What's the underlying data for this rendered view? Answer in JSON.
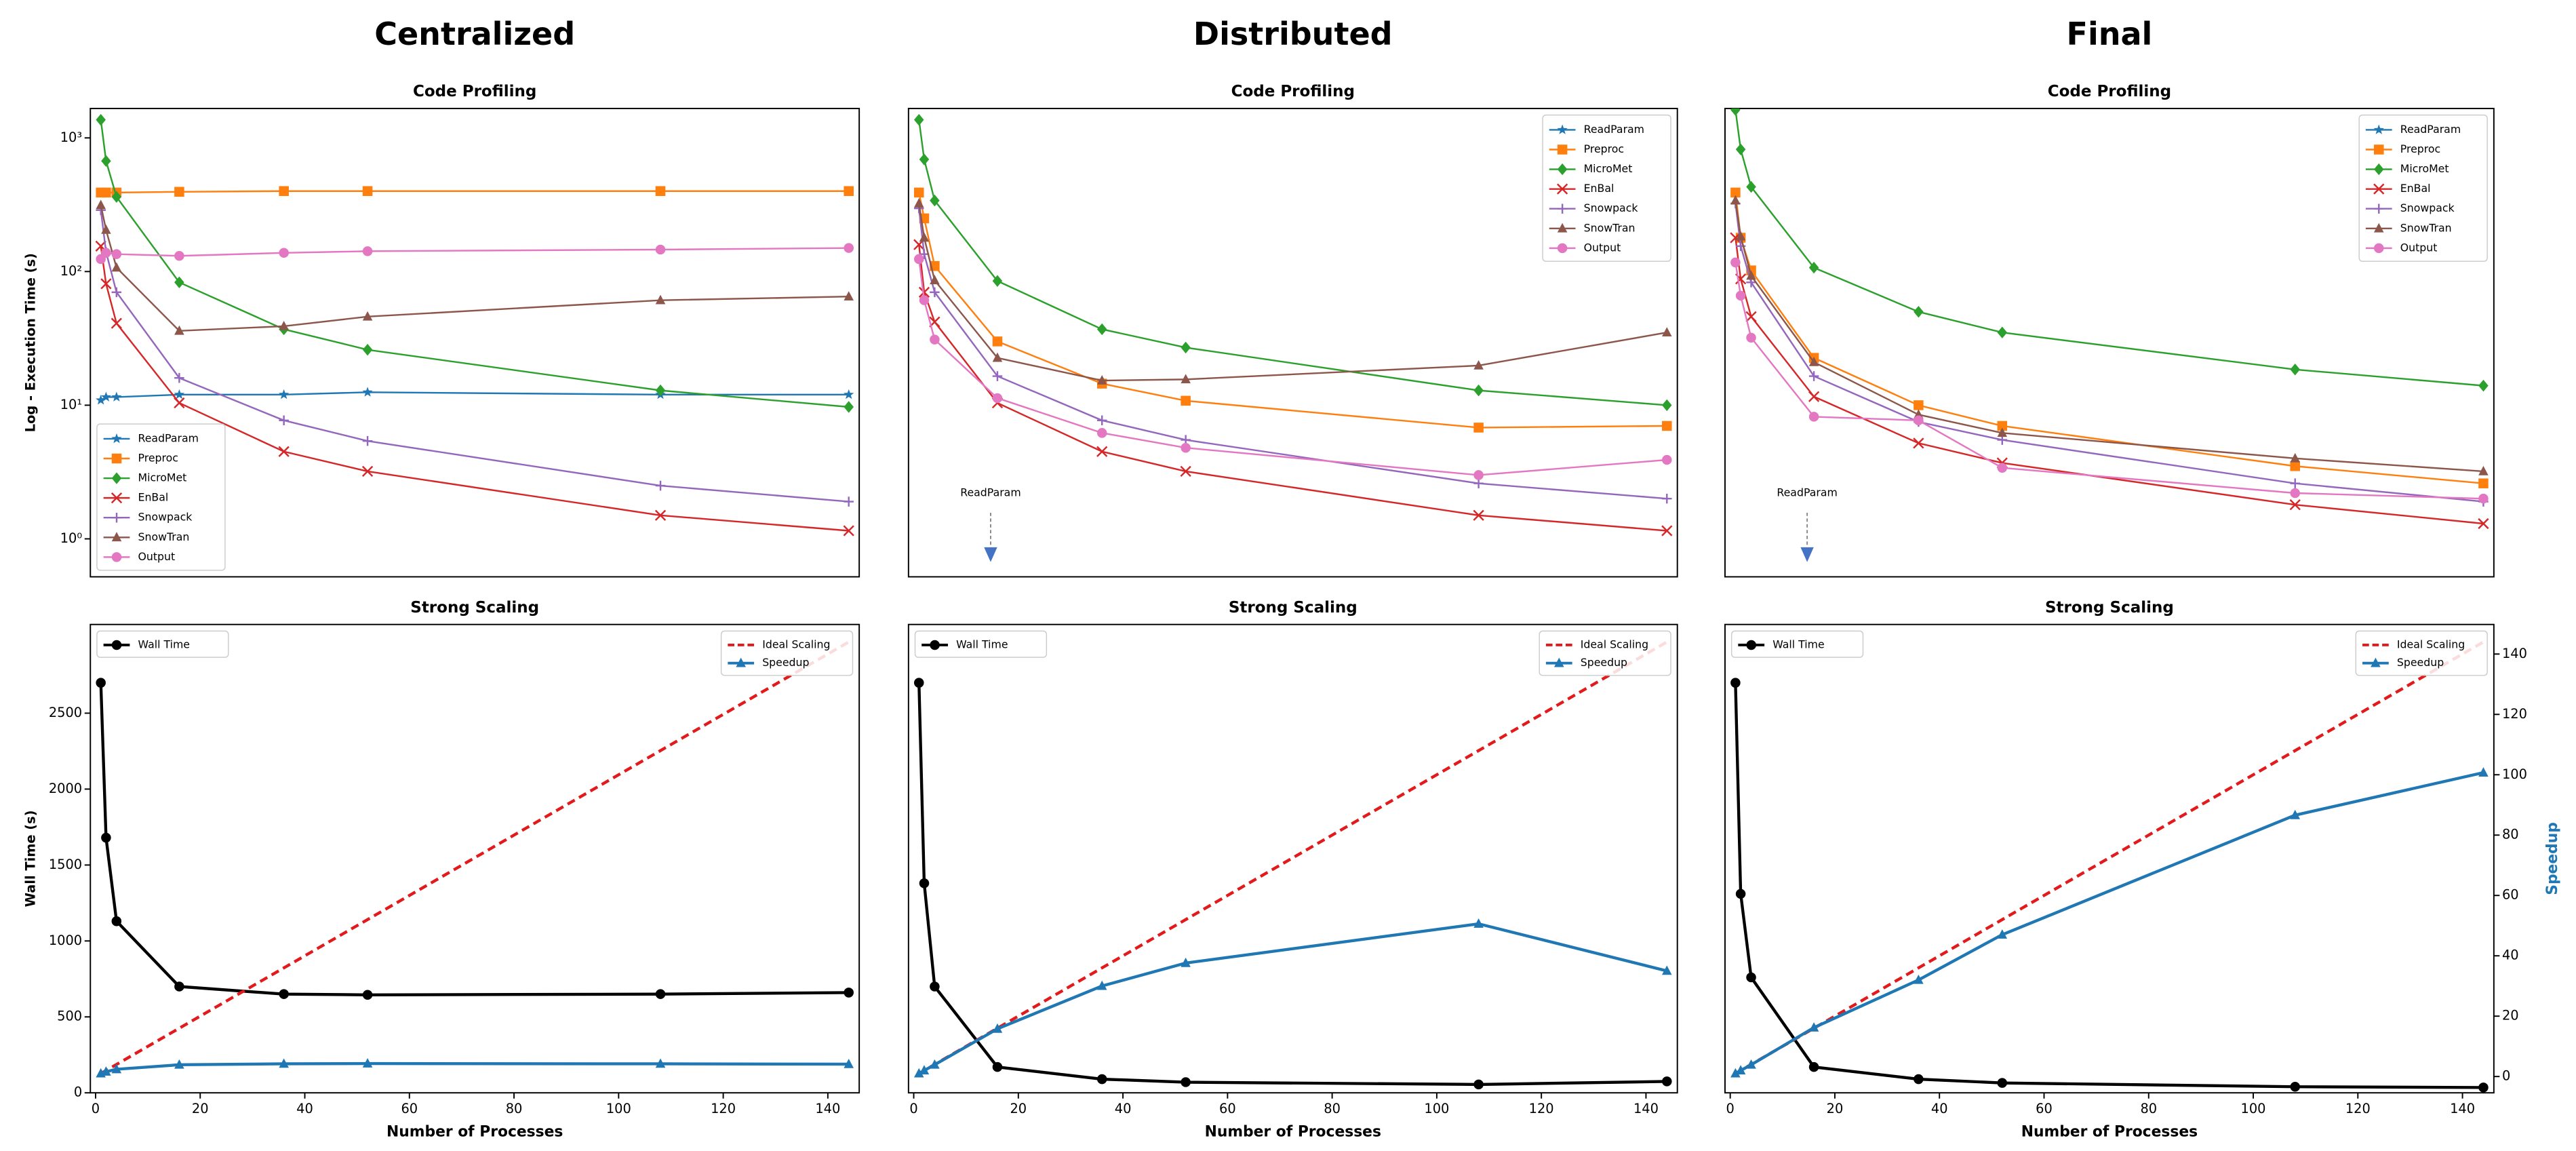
{
  "panel_titles": [
    "Centralized",
    "Distributed",
    "Final"
  ],
  "chart_data": [
    {
      "type": "line",
      "title": "Code Profiling",
      "ylabel": "Log - Execution Time (s)",
      "log_y": true,
      "legend": "lower left",
      "x": [
        1,
        2,
        4,
        16,
        36,
        52,
        108,
        144
      ],
      "xlim": [
        -1,
        146
      ],
      "ylim": [
        0.52,
        1660
      ],
      "yticks": [
        {
          "value": 1,
          "label": "10⁰"
        },
        {
          "value": 10,
          "label": "10¹"
        },
        {
          "value": 100,
          "label": "10²"
        },
        {
          "value": 1000,
          "label": "10³"
        }
      ],
      "series": [
        {
          "name": "ReadParam",
          "color": "#1f77b4",
          "marker": "*",
          "values": [
            10.9,
            11.5,
            11.5,
            12,
            12,
            12.5,
            12,
            12
          ]
        },
        {
          "name": "Preproc",
          "color": "#ff7f0e",
          "marker": "s",
          "values": [
            390,
            390,
            390,
            395,
            400,
            400,
            400,
            400
          ]
        },
        {
          "name": "MicroMet",
          "color": "#2ca02c",
          "marker": "D",
          "values": [
            1365,
            672,
            362,
            83,
            37,
            26,
            12.9,
            9.7
          ]
        },
        {
          "name": "EnBal",
          "color": "#d62728",
          "marker": "x",
          "values": [
            155,
            81,
            41,
            10.4,
            4.5,
            3.2,
            1.5,
            1.15
          ]
        },
        {
          "name": "Snowpack",
          "color": "#9467bd",
          "marker": "+",
          "values": [
            288,
            140,
            70,
            16,
            7.7,
            5.4,
            2.5,
            1.9
          ]
        },
        {
          "name": "SnowTran",
          "color": "#8c564b",
          "marker": "^",
          "values": [
            314,
            205,
            107,
            36,
            39,
            46,
            61,
            65
          ]
        },
        {
          "name": "Output",
          "color": "#e377c2",
          "marker": "o",
          "values": [
            124,
            138,
            135,
            131,
            138,
            142,
            146,
            150
          ]
        }
      ]
    },
    {
      "type": "line",
      "title": "Code Profiling",
      "log_y": true,
      "legend": "upper right",
      "annotation": "ReadParam",
      "x": [
        1,
        2,
        4,
        16,
        36,
        52,
        108,
        144
      ],
      "xlim": [
        -1,
        146
      ],
      "ylim": [
        0.52,
        1660
      ],
      "series": [
        {
          "name": "ReadParam",
          "color": "#1f77b4",
          "marker": "*",
          "values": [
            null,
            null,
            null,
            null,
            null,
            null,
            null,
            null
          ]
        },
        {
          "name": "Preproc",
          "color": "#ff7f0e",
          "marker": "s",
          "values": [
            390,
            250,
            110,
            30,
            14.5,
            10.8,
            6.8,
            7.0
          ]
        },
        {
          "name": "MicroMet",
          "color": "#2ca02c",
          "marker": "D",
          "values": [
            1365,
            690,
            340,
            85,
            37,
            27,
            12.9,
            10
          ]
        },
        {
          "name": "EnBal",
          "color": "#d62728",
          "marker": "x",
          "values": [
            159,
            70,
            42,
            10.4,
            4.5,
            3.2,
            1.5,
            1.15
          ]
        },
        {
          "name": "Snowpack",
          "color": "#9467bd",
          "marker": "+",
          "values": [
            297,
            135,
            70,
            16.5,
            7.7,
            5.5,
            2.6,
            2.0
          ]
        },
        {
          "name": "SnowTran",
          "color": "#8c564b",
          "marker": "^",
          "values": [
            323,
            179,
            86,
            22.6,
            15.3,
            15.6,
            19.8,
            35
          ]
        },
        {
          "name": "Output",
          "color": "#e377c2",
          "marker": "o",
          "values": [
            124,
            61,
            31,
            11.3,
            6.2,
            4.8,
            3.0,
            3.9
          ]
        }
      ]
    },
    {
      "type": "line",
      "title": "Code Profiling",
      "log_y": true,
      "legend": "upper right",
      "annotation": "ReadParam",
      "x": [
        1,
        2,
        4,
        16,
        36,
        52,
        108,
        144
      ],
      "xlim": [
        -1,
        146
      ],
      "ylim": [
        0.52,
        1660
      ],
      "series": [
        {
          "name": "ReadParam",
          "color": "#1f77b4",
          "marker": "*",
          "values": [
            null,
            null,
            null,
            null,
            null,
            null,
            null,
            null
          ]
        },
        {
          "name": "Preproc",
          "color": "#ff7f0e",
          "marker": "s",
          "values": [
            390,
            179,
            102,
            22.6,
            10,
            7.0,
            3.5,
            2.6
          ]
        },
        {
          "name": "MicroMet",
          "color": "#2ca02c",
          "marker": "D",
          "values": [
            1620,
            820,
            430,
            107,
            50,
            35,
            18.5,
            14
          ]
        },
        {
          "name": "EnBal",
          "color": "#d62728",
          "marker": "x",
          "values": [
            179,
            88,
            46,
            11.6,
            5.2,
            3.7,
            1.8,
            1.3
          ]
        },
        {
          "name": "Snowpack",
          "color": "#9467bd",
          "marker": "+",
          "values": [
            323,
            155,
            83,
            16.5,
            7.5,
            5.5,
            2.6,
            1.9
          ]
        },
        {
          "name": "SnowTran",
          "color": "#8c564b",
          "marker": "^",
          "values": [
            340,
            183,
            93,
            21,
            8.5,
            6.2,
            4.0,
            3.2
          ]
        },
        {
          "name": "Output",
          "color": "#e377c2",
          "marker": "o",
          "values": [
            117,
            66,
            32,
            8.2,
            7.7,
            3.4,
            2.2,
            2.0
          ]
        }
      ]
    },
    {
      "type": "line",
      "title": "Strong Scaling",
      "xlabel": "Number of Processes",
      "ylabel": "Wall Time (s)",
      "x": [
        1,
        2,
        4,
        16,
        36,
        52,
        108,
        144
      ],
      "xlim": [
        -1,
        146
      ],
      "xticks": [
        0,
        20,
        40,
        60,
        80,
        100,
        120,
        140
      ],
      "ylim": [
        0,
        3084
      ],
      "yticks": [
        0,
        500,
        1000,
        1500,
        2000,
        2500
      ],
      "y2lim": [
        -5.4,
        149.8
      ],
      "series": [
        {
          "name": "Wall Time",
          "color": "#000000",
          "marker": "o",
          "legend": "upper left",
          "values": [
            2700,
            1680,
            1130,
            700,
            650,
            645,
            650,
            660
          ]
        },
        {
          "name": "Ideal Scaling",
          "color": "#e31a1c",
          "dash": true,
          "axis": "y2",
          "legend": "upper right",
          "values": [
            1,
            2,
            4,
            16,
            36,
            52,
            108,
            144
          ]
        },
        {
          "name": "Speedup",
          "color": "#1f77b4",
          "marker": "^",
          "axis": "y2",
          "legend": "upper right",
          "values": [
            1,
            1.6,
            2.4,
            3.9,
            4.2,
            4.3,
            4.2,
            4.1
          ]
        }
      ]
    },
    {
      "type": "line",
      "title": "Strong Scaling",
      "xlabel": "Number of Processes",
      "x": [
        1,
        2,
        4,
        16,
        36,
        52,
        108,
        144
      ],
      "xlim": [
        -1,
        146
      ],
      "xticks": [
        0,
        20,
        40,
        60,
        80,
        100,
        120,
        140
      ],
      "ylim": [
        0,
        3084
      ],
      "y2lim": [
        -5.4,
        149.8
      ],
      "series": [
        {
          "name": "Wall Time",
          "color": "#000000",
          "marker": "o",
          "legend": "upper left",
          "values": [
            2700,
            1380,
            700,
            170,
            90,
            70,
            55,
            75
          ]
        },
        {
          "name": "Ideal Scaling",
          "color": "#e31a1c",
          "dash": true,
          "axis": "y2",
          "legend": "upper right",
          "values": [
            1,
            2,
            4,
            16,
            36,
            52,
            108,
            144
          ]
        },
        {
          "name": "Speedup",
          "color": "#1f77b4",
          "marker": "^",
          "axis": "y2",
          "legend": "upper right",
          "values": [
            1,
            2,
            3.9,
            15.8,
            30,
            37.6,
            50.6,
            35
          ]
        }
      ]
    },
    {
      "type": "line",
      "title": "Strong Scaling",
      "xlabel": "Number of Processes",
      "y2label": "Speedup",
      "x": [
        1,
        2,
        4,
        16,
        36,
        52,
        108,
        144
      ],
      "xlim": [
        -1,
        146
      ],
      "xticks": [
        0,
        20,
        40,
        60,
        80,
        100,
        120,
        140
      ],
      "ylim": [
        0,
        3084
      ],
      "y2lim": [
        -5.4,
        149.8
      ],
      "y2ticks": [
        0,
        20,
        40,
        60,
        80,
        100,
        120,
        140
      ],
      "series": [
        {
          "name": "Wall Time",
          "color": "#000000",
          "marker": "o",
          "legend": "upper left",
          "values": [
            2700,
            1310,
            760,
            170,
            90,
            65,
            40,
            35
          ]
        },
        {
          "name": "Ideal Scaling",
          "color": "#e31a1c",
          "dash": true,
          "axis": "y2",
          "legend": "upper right",
          "values": [
            1,
            2,
            4,
            16,
            36,
            52,
            108,
            144
          ]
        },
        {
          "name": "Speedup",
          "color": "#1f77b4",
          "marker": "^",
          "axis": "y2",
          "legend": "upper right",
          "values": [
            1,
            2,
            3.9,
            16.2,
            32,
            47,
            86.6,
            100.7
          ]
        }
      ]
    }
  ]
}
